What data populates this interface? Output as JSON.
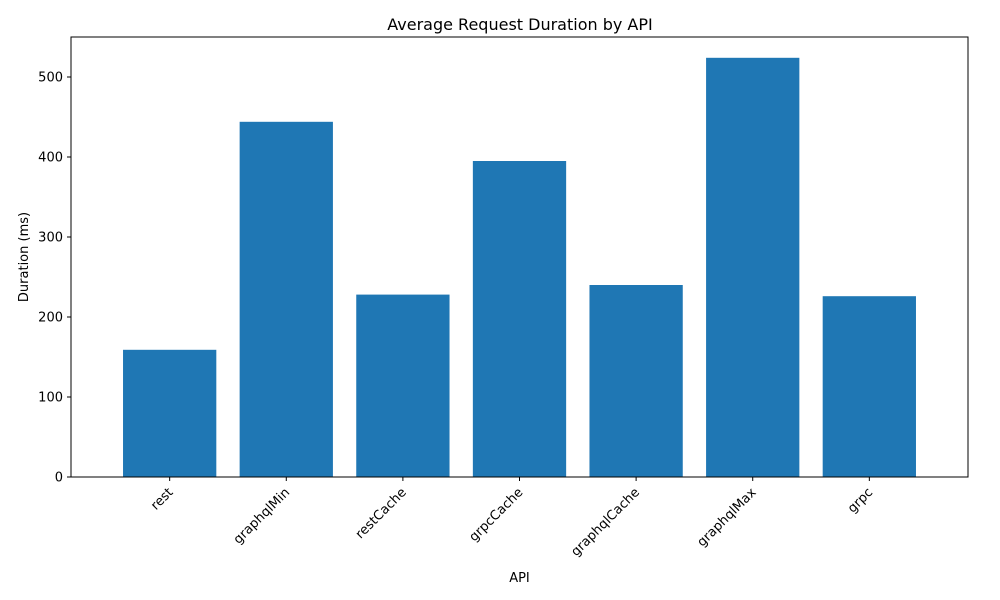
{
  "chart_data": {
    "type": "bar",
    "title": "Average Request Duration by API",
    "xlabel": "API",
    "ylabel": "Duration (ms)",
    "categories": [
      "rest",
      "graphqlMin",
      "restCache",
      "grpcCache",
      "graphqlCache",
      "graphqlMax",
      "grpc"
    ],
    "values": [
      159,
      444,
      228,
      395,
      240,
      524,
      226
    ],
    "ylim": [
      0,
      550
    ],
    "yticks": [
      0,
      100,
      200,
      300,
      400,
      500
    ],
    "grid": false,
    "bar_color": "#1f77b4",
    "x_tick_rotation_deg": 45
  }
}
